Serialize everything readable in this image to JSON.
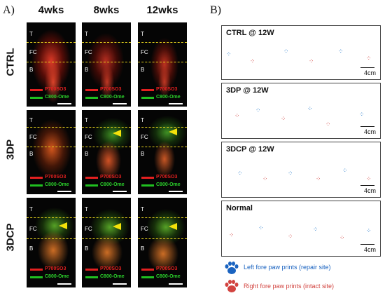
{
  "panel_a": {
    "letter": "A)",
    "columns": [
      "4wks",
      "8wks",
      "12wks"
    ],
    "rows": [
      "CTRL",
      "3DP",
      "3DCP"
    ],
    "zone_labels": {
      "top": "T",
      "middle": "FC",
      "bottom": "B"
    },
    "legend": {
      "red_label": "P700SO3",
      "green_label": "C800-Ome"
    },
    "colors": {
      "red_dye": "#e32020",
      "green_dye": "#20c020",
      "marker": "#f3e10a"
    },
    "arrow_markers": [
      "3DP-8wks",
      "3DP-12wks",
      "3DCP-4wks",
      "3DCP-8wks",
      "3DCP-12wks"
    ]
  },
  "panel_b": {
    "letter": "B)",
    "gait_panels": [
      {
        "title": "CTRL @ 12W",
        "scale": "4cm"
      },
      {
        "title": "3DP @ 12W",
        "scale": "4cm"
      },
      {
        "title": "3DCP @ 12W",
        "scale": "4cm"
      },
      {
        "title": "Normal",
        "scale": "4cm"
      }
    ],
    "legend": {
      "left": "Left fore paw prints (repair site)",
      "right": "Right fore paw prints (intact site)",
      "icon": "paw-icon"
    },
    "colors": {
      "left_print": "#1a73c9",
      "right_print": "#d2433f"
    }
  }
}
